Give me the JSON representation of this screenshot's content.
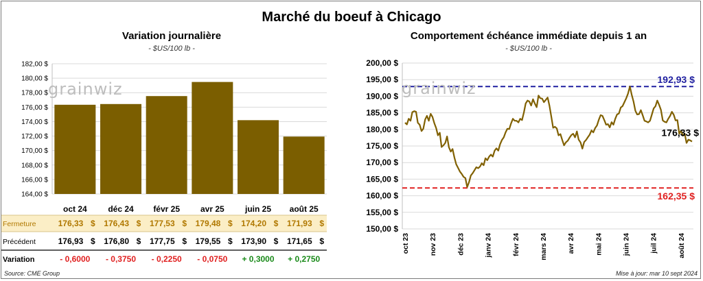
{
  "title": "Marché du boeuf à Chicago",
  "left": {
    "title": "Variation journalière",
    "unit": "- $US/100 lb -"
  },
  "right": {
    "title": "Comportement  échéance immédiate depuis 1 an",
    "unit": "- $US/100 lb -"
  },
  "watermark": "grainwiz",
  "footer": {
    "source": "Source: CME Group",
    "updated": "Mise à jour: mar 10 sept 2024"
  },
  "colors": {
    "bar": "#7b5e00",
    "line": "#806000",
    "max_line": "#1f1fa0",
    "min_line": "#e02020",
    "close_row_bg": "#fbeec6",
    "close_label": "#b07800",
    "negative": "#e02020",
    "positive": "#1a8a1a"
  },
  "table": {
    "rows": [
      {
        "label": "Fermeture",
        "values": [
          "176,33",
          "176,43",
          "177,53",
          "179,48",
          "174,20",
          "171,93"
        ],
        "suffix": "$"
      },
      {
        "label": "Précédent",
        "values": [
          "176,93",
          "176,80",
          "177,75",
          "179,55",
          "173,90",
          "171,65"
        ],
        "suffix": "$"
      },
      {
        "label": "Variation",
        "values": [
          "- 0,6000",
          "- 0,3750",
          "- 0,2250",
          "- 0,0750",
          "+ 0,3000",
          "+ 0,2750"
        ],
        "signs": [
          "neg",
          "neg",
          "neg",
          "neg",
          "pos",
          "pos"
        ]
      }
    ]
  },
  "chart_data": [
    {
      "type": "bar",
      "title": "Variation journalière",
      "categories": [
        "oct 24",
        "déc 24",
        "févr 25",
        "avr 25",
        "juin 25",
        "août 25"
      ],
      "values": [
        176.33,
        176.43,
        177.53,
        179.48,
        174.2,
        171.93
      ],
      "ylim": [
        164,
        182
      ],
      "yticks": [
        "164,00 $",
        "166,00 $",
        "168,00 $",
        "170,00 $",
        "172,00 $",
        "174,00 $",
        "176,00 $",
        "178,00 $",
        "180,00 $",
        "182,00 $"
      ],
      "grid": true
    },
    {
      "type": "line",
      "title": "Comportement  échéance immédiate depuis 1 an",
      "x_labels": [
        "oct 23",
        "nov 23",
        "déc 23",
        "janv 24",
        "févr 24",
        "mars 24",
        "avr 24",
        "mai 24",
        "juin 24",
        "juil 24",
        "août 24"
      ],
      "ylim": [
        150,
        200
      ],
      "yticks": [
        "150,00 $",
        "155,00 $",
        "160,00 $",
        "165,00 $",
        "170,00 $",
        "175,00 $",
        "180,00 $",
        "185,00 $",
        "190,00 $",
        "195,00 $",
        "200,00 $"
      ],
      "values": [
        182.0,
        181.5,
        183.2,
        182.6,
        185.2,
        185.5,
        185.3,
        182.0,
        181.4,
        179.5,
        180.2,
        183.0,
        184.1,
        182.6,
        184.7,
        183.8,
        181.9,
        180.4,
        178.2,
        179.0,
        174.7,
        175.2,
        175.9,
        177.9,
        174.6,
        173.3,
        174.1,
        171.5,
        169.5,
        168.4,
        167.3,
        166.6,
        165.7,
        165.3,
        162.6,
        164.1,
        166.1,
        166.8,
        167.7,
        168.6,
        168.3,
        168.8,
        169.8,
        169.2,
        171.3,
        170.7,
        171.8,
        172.4,
        171.8,
        173.6,
        174.3,
        173.6,
        175.5,
        176.8,
        177.6,
        179.1,
        180.2,
        180.1,
        181.8,
        183.2,
        182.6,
        182.6,
        182.1,
        183.2,
        182.8,
        185.1,
        187.8,
        188.7,
        188.4,
        187.2,
        189.1,
        187.8,
        186.7,
        190.2,
        189.4,
        189.3,
        188.2,
        188.9,
        189.6,
        187.2,
        183.9,
        180.5,
        180.8,
        180.3,
        178.2,
        178.6,
        176.8,
        175.2,
        176.1,
        176.6,
        177.5,
        178.3,
        178.7,
        177.6,
        179.4,
        176.9,
        176.1,
        174.2,
        176.2,
        176.8,
        177.6,
        178.4,
        179.7,
        179.1,
        180.4,
        181.2,
        182.9,
        184.3,
        184.1,
        182.8,
        181.4,
        181.6,
        180.6,
        182.2,
        181.4,
        183.2,
        184.5,
        184.8,
        186.6,
        187.0,
        188.2,
        189.4,
        190.8,
        192.93,
        190.5,
        188.4,
        185.6,
        184.5,
        184.6,
        185.8,
        184.3,
        182.6,
        182.4,
        182.1,
        182.6,
        184.4,
        186.3,
        187.0,
        188.7,
        187.4,
        185.9,
        182.7,
        182.3,
        182.1,
        183.2,
        184.1,
        185.3,
        184.4,
        182.7,
        182.8,
        178.7,
        179.6,
        178.1,
        178.7,
        175.9,
        176.9,
        176.7,
        176.33
      ],
      "max": {
        "value": 192.93,
        "label": "192,93 $"
      },
      "min": {
        "value": 162.35,
        "label": "162,35 $"
      },
      "last": {
        "value": 176.33,
        "label": "176,33 $"
      },
      "grid": true
    }
  ]
}
